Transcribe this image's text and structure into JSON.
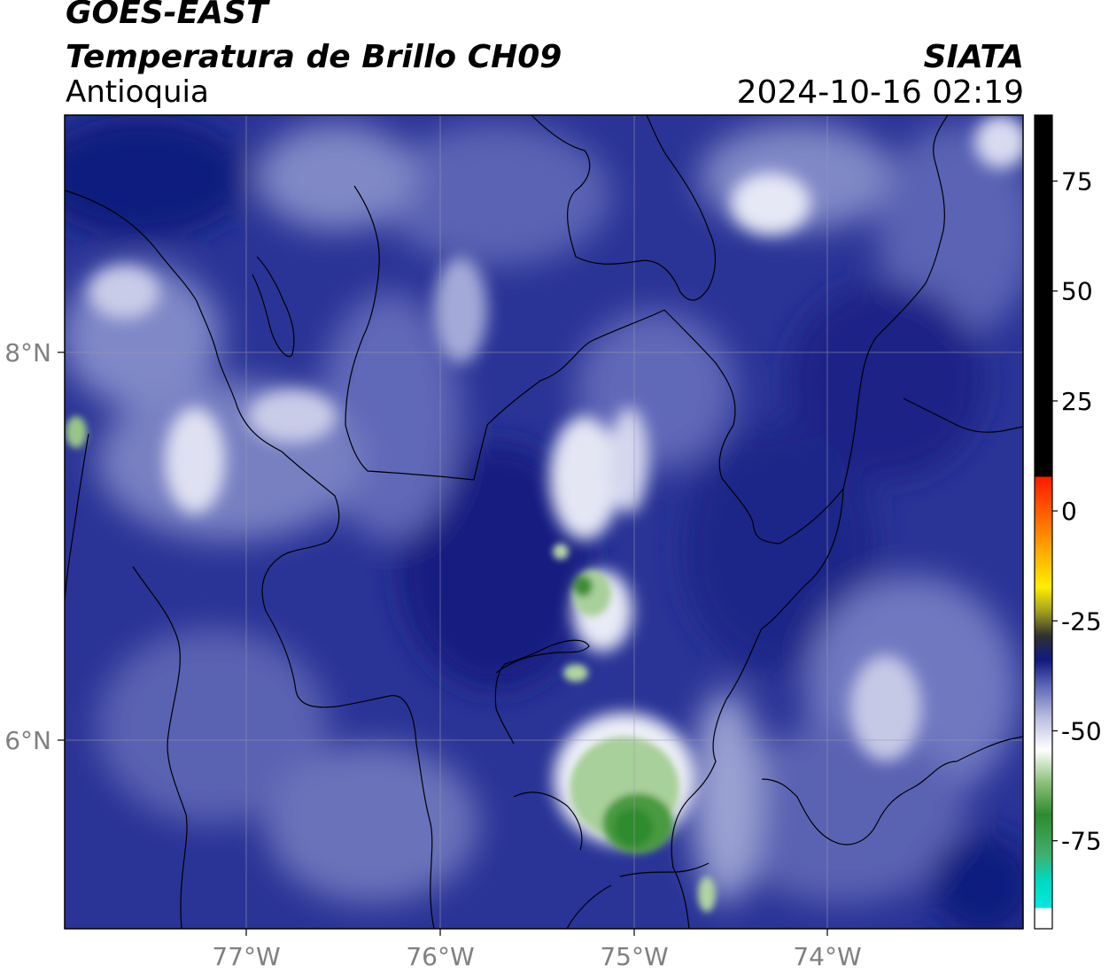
{
  "header": {
    "satellite": "GOES-EAST",
    "product": "Temperatura de Brillo CH09",
    "region": "Antioquia",
    "organization": "SIATA",
    "timestamp": "2024-10-16 02:19"
  },
  "map": {
    "lon_labels": [
      "77°W",
      "76°W",
      "75°W",
      "74°W"
    ],
    "lat_labels": [
      "8°N",
      "6°N"
    ],
    "lon_range": [
      -77.95,
      -73.0
    ],
    "lat_range": [
      5.05,
      9.25
    ]
  },
  "colorbar": {
    "ticks": [
      "75",
      "50",
      "25",
      "0",
      "-25",
      "-50",
      "-75"
    ],
    "range": [
      -95,
      90
    ],
    "palette": {
      "cyan": "#00e6d2",
      "green": "#2e8b2e",
      "white": "#ffffff",
      "navy": "#101a80",
      "yellow": "#ffee00",
      "red": "#ff1a00",
      "black": "#000000"
    }
  }
}
